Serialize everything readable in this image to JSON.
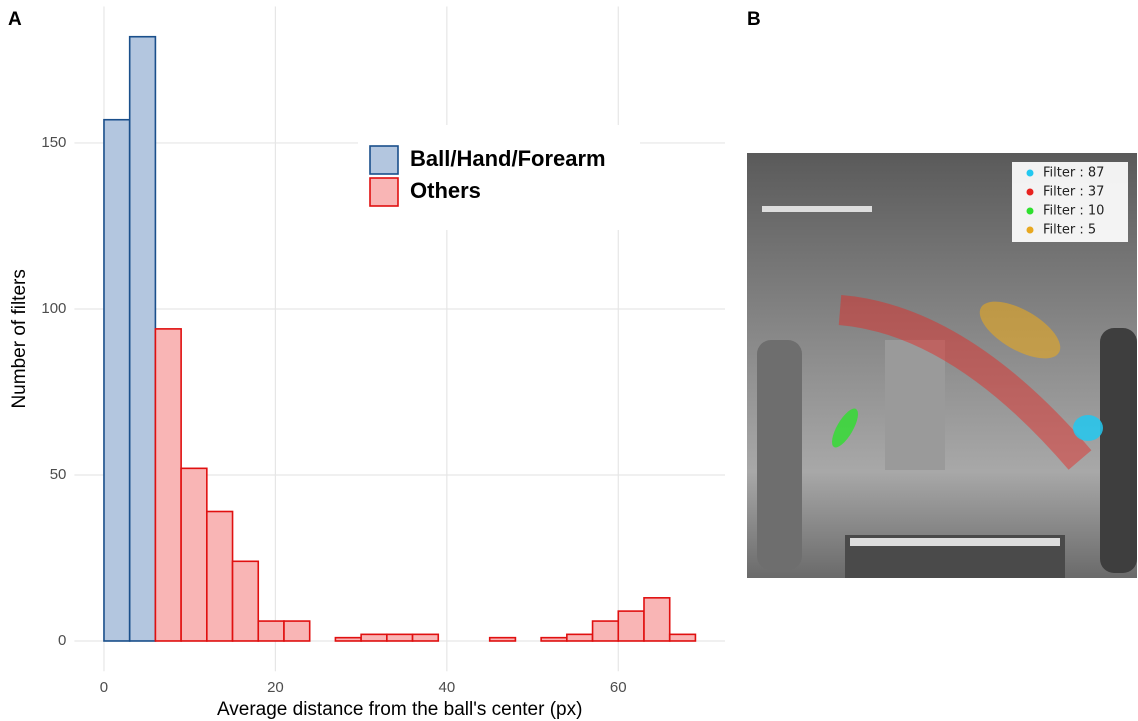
{
  "panels": [
    "A",
    "B"
  ],
  "image_legend": [
    {
      "label": "Filter : 87",
      "color": "#22c8f0"
    },
    {
      "label": "Filter : 37",
      "color": "#e8231f"
    },
    {
      "label": "Filter : 10",
      "color": "#2ee02e"
    },
    {
      "label": "Filter : 5",
      "color": "#e8a820"
    }
  ],
  "chart_data": {
    "type": "histogram",
    "xlabel": "Average distance from the ball's center (px)",
    "ylabel": "Number of filters",
    "bins": [
      0,
      3,
      6,
      9,
      12,
      15,
      18,
      21,
      24,
      27,
      30,
      33,
      36,
      39,
      42,
      45,
      48,
      51,
      54,
      57,
      60,
      63,
      66,
      69
    ],
    "series": [
      {
        "name": "Ball/Hand/Forearm",
        "color": "#b3c6df",
        "edgecolor": "#1a4f8b",
        "values": [
          157,
          182,
          0,
          0,
          0,
          0,
          0,
          0,
          0,
          0,
          0,
          0,
          0,
          0,
          0,
          0,
          0,
          0,
          0,
          0,
          0,
          0,
          0
        ]
      },
      {
        "name": "Others",
        "color": "#f9b5b5",
        "edgecolor": "#e01010",
        "values": [
          0,
          0,
          94,
          52,
          39,
          24,
          6,
          6,
          0,
          1,
          2,
          2,
          2,
          0,
          0,
          1,
          0,
          1,
          2,
          6,
          9,
          13,
          2
        ]
      }
    ],
    "xlim": [
      -3.45,
      72.45
    ],
    "xticks": [
      0,
      20,
      40,
      60
    ],
    "ylim": [
      -9.1,
      191.1
    ],
    "yticks": [
      0,
      50,
      100,
      150
    ],
    "grid": true,
    "legend_position": "upper right"
  }
}
